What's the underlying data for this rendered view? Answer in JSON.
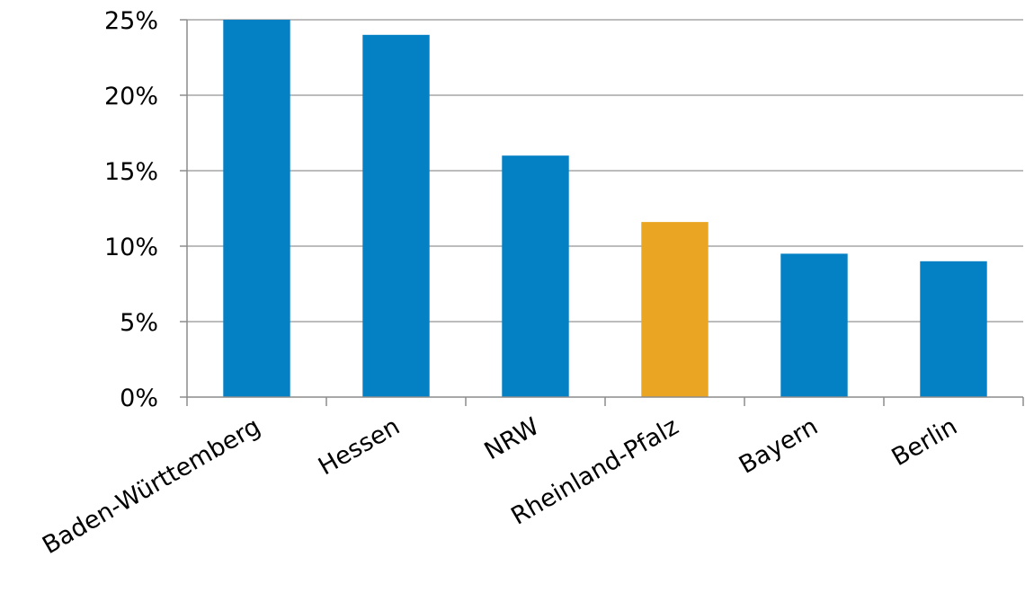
{
  "chart_data": {
    "type": "bar",
    "title": "",
    "xlabel": "",
    "ylabel": "",
    "categories": [
      "Baden-Württemberg",
      "Hessen",
      "NRW",
      "Rheinland-Pfalz",
      "Bayern",
      "Berlin"
    ],
    "values": [
      25.0,
      24.0,
      16.0,
      11.6,
      9.5,
      9.0
    ],
    "value_unit": "percent",
    "ylim": [
      0,
      25
    ],
    "yticks": [
      0,
      5,
      10,
      15,
      20,
      25
    ],
    "ytick_labels": [
      "0%",
      "5%",
      "10%",
      "15%",
      "20%",
      "25%"
    ],
    "grid": true,
    "legend": "none",
    "colors": {
      "default": "#0480c4",
      "highlight": "#eaa623",
      "highlight_category": "Rheinland-Pfalz"
    }
  }
}
